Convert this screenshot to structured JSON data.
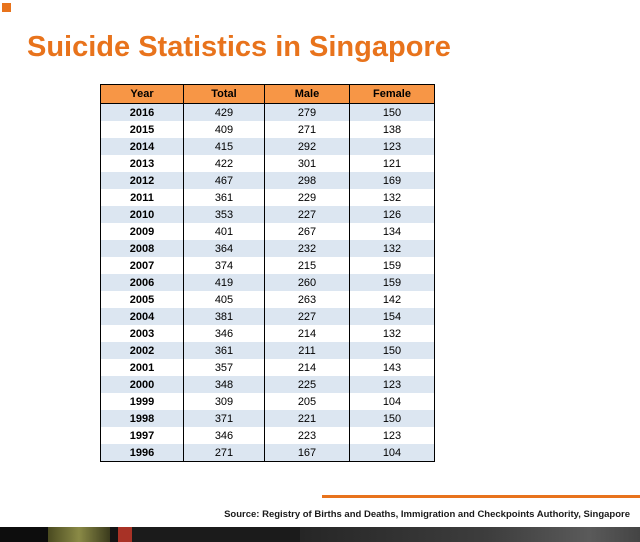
{
  "page": {
    "title": "Suicide Statistics in Singapore",
    "source": "Source: Registry of Births and Deaths, Immigration and Checkpoints Authority, Singapore"
  },
  "colors": {
    "title_orange": "#e8731c",
    "table_header_bg": "#f79646",
    "table_band_bg": "#dce6f1",
    "divider_orange": "#e8731c",
    "strip_bg": "#141414"
  },
  "chart_data": {
    "type": "table",
    "title": "Suicide Statistics in Singapore",
    "columns": [
      "Year",
      "Total",
      "Male",
      "Female"
    ],
    "rows": [
      [
        "2016",
        "429",
        "279",
        "150"
      ],
      [
        "2015",
        "409",
        "271",
        "138"
      ],
      [
        "2014",
        "415",
        "292",
        "123"
      ],
      [
        "2013",
        "422",
        "301",
        "121"
      ],
      [
        "2012",
        "467",
        "298",
        "169"
      ],
      [
        "2011",
        "361",
        "229",
        "132"
      ],
      [
        "2010",
        "353",
        "227",
        "126"
      ],
      [
        "2009",
        "401",
        "267",
        "134"
      ],
      [
        "2008",
        "364",
        "232",
        "132"
      ],
      [
        "2007",
        "374",
        "215",
        "159"
      ],
      [
        "2006",
        "419",
        "260",
        "159"
      ],
      [
        "2005",
        "405",
        "263",
        "142"
      ],
      [
        "2004",
        "381",
        "227",
        "154"
      ],
      [
        "2003",
        "346",
        "214",
        "132"
      ],
      [
        "2002",
        "361",
        "211",
        "150"
      ],
      [
        "2001",
        "357",
        "214",
        "143"
      ],
      [
        "2000",
        "348",
        "225",
        "123"
      ],
      [
        "1999",
        "309",
        "205",
        "104"
      ],
      [
        "1998",
        "371",
        "221",
        "150"
      ],
      [
        "1997",
        "346",
        "223",
        "123"
      ],
      [
        "1996",
        "271",
        "167",
        "104"
      ]
    ]
  }
}
